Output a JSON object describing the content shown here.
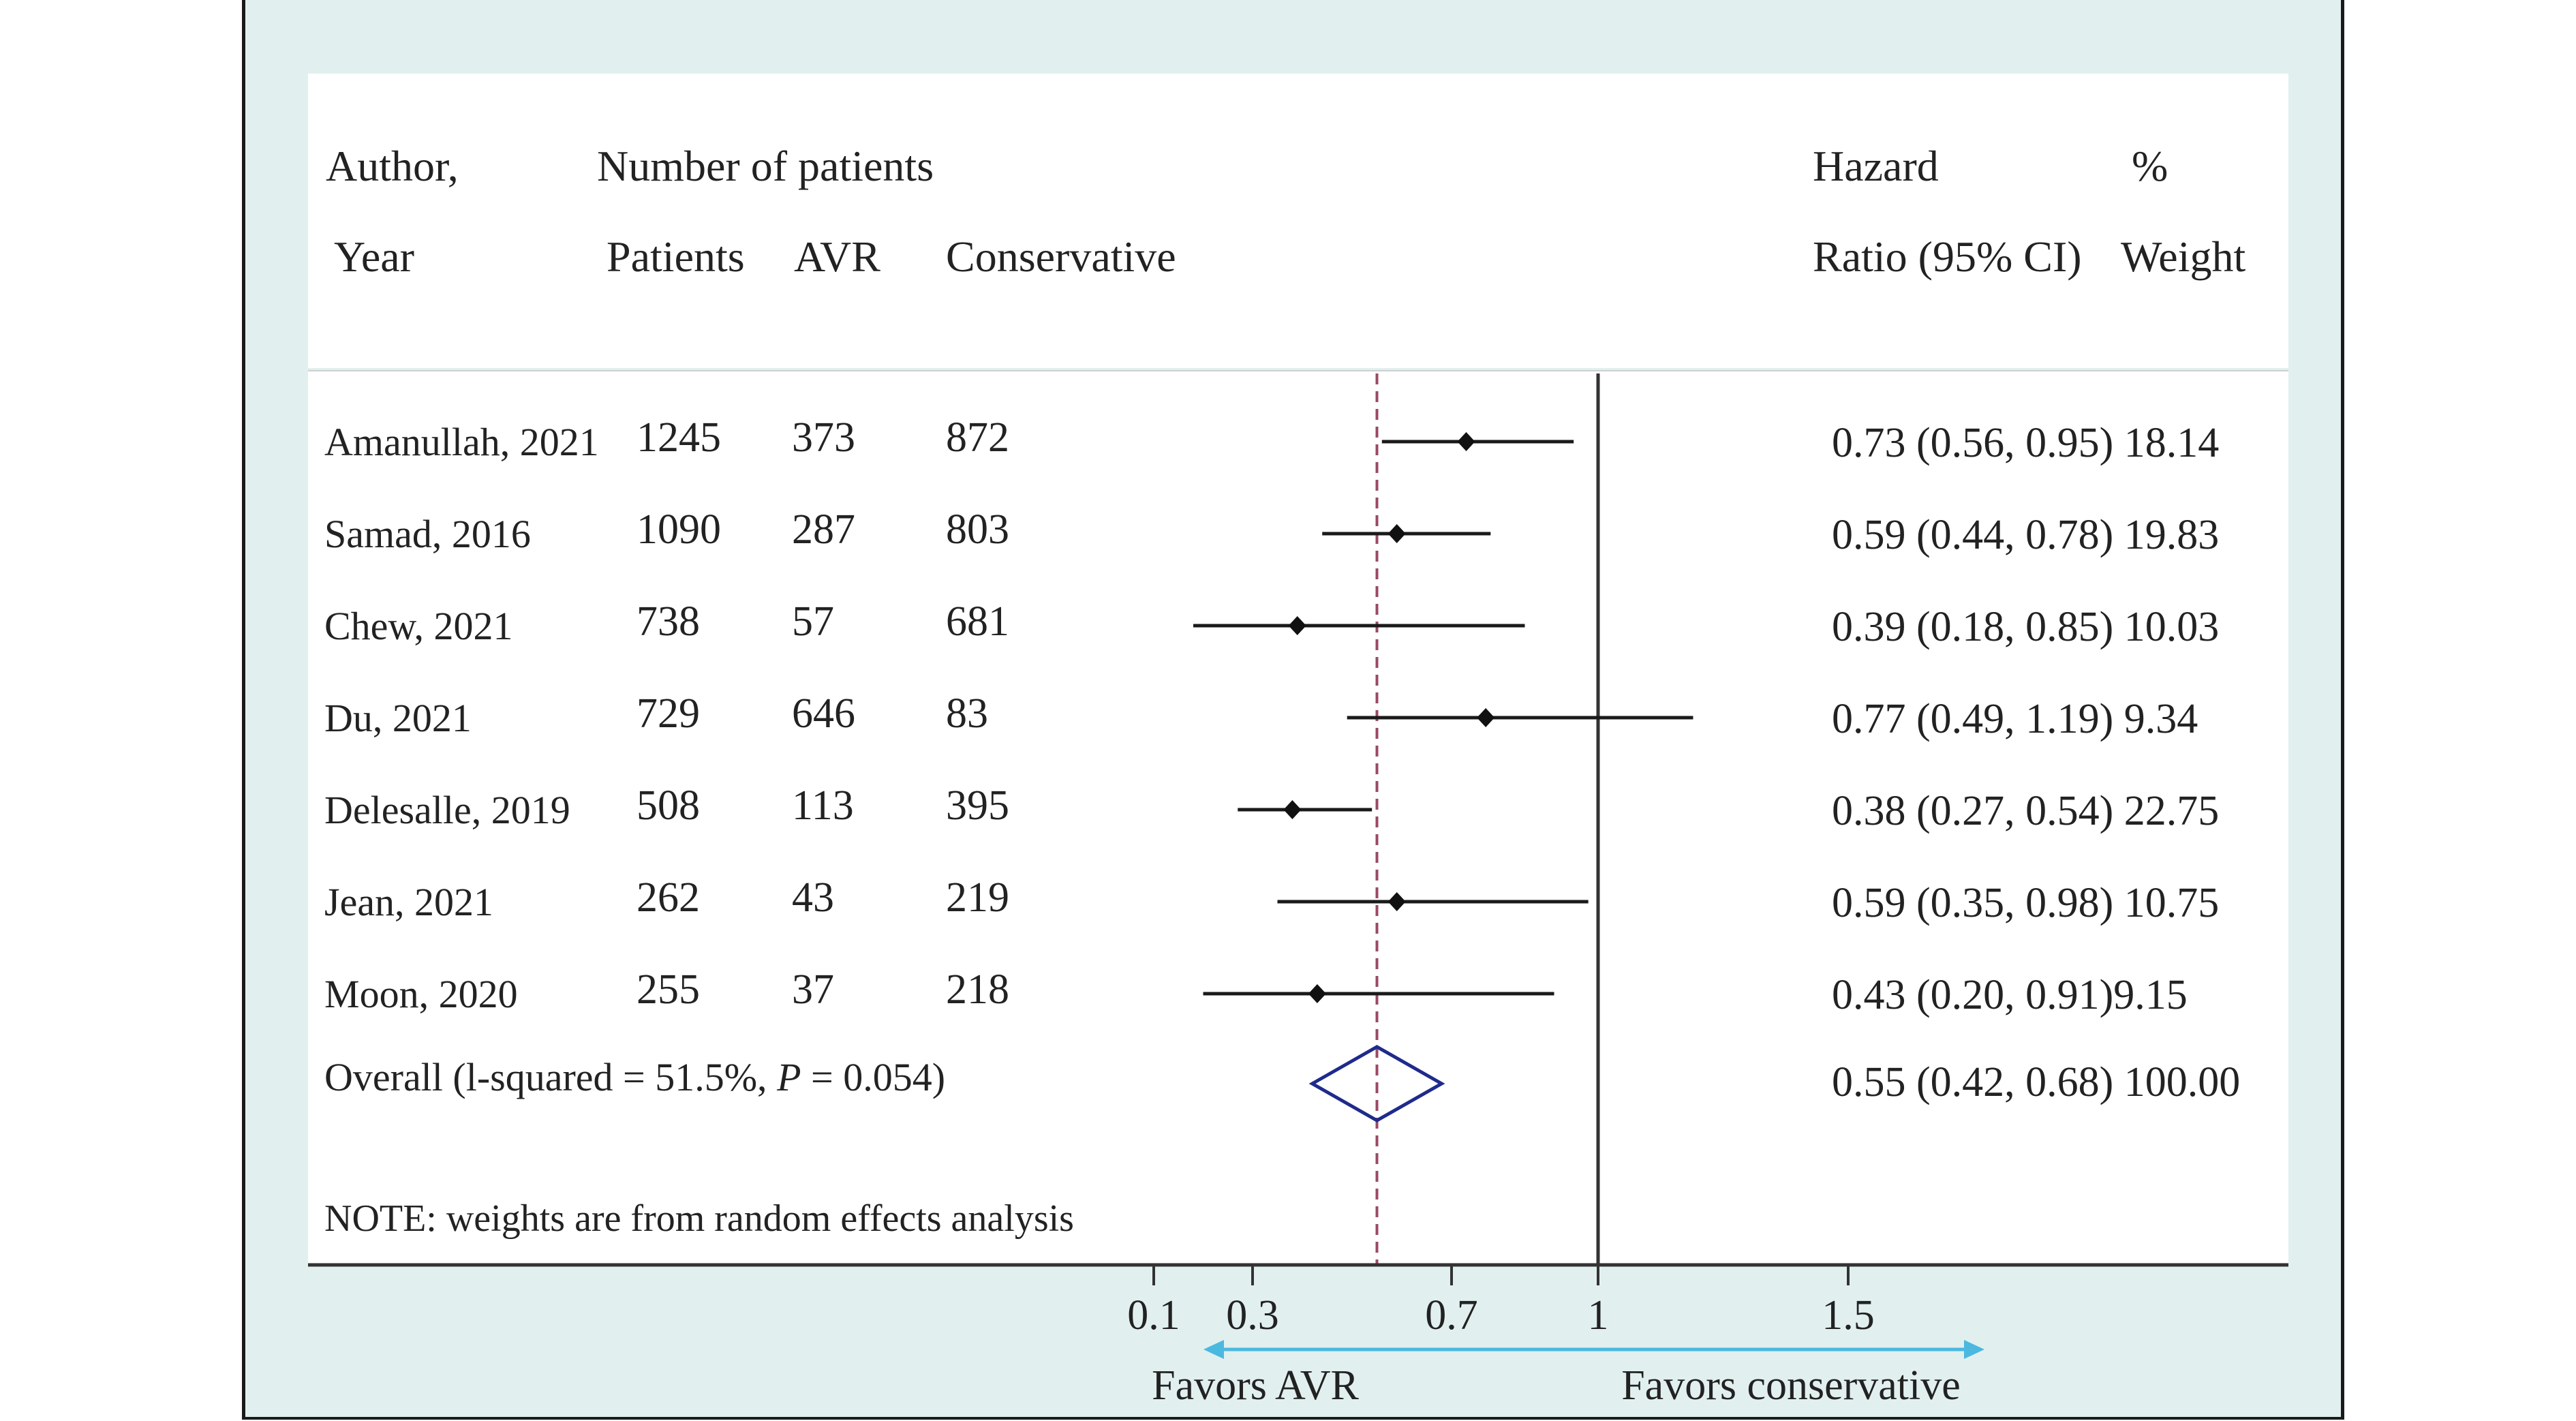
{
  "header": {
    "author_line1": "Author,",
    "author_line2": "Year",
    "number_of_patients": "Number of patients",
    "col_patients": "Patients",
    "col_avr": "AVR",
    "col_conservative": "Conservative",
    "hr_line1": "Hazard",
    "hr_line2": "Ratio (95% CI)",
    "weight_line1": "%",
    "weight_line2": "Weight"
  },
  "chart_data": {
    "type": "forest",
    "rows": [
      {
        "study": "Amanullah, 2021",
        "patients": "1245",
        "avr": "373",
        "conservative": "872",
        "hr": 0.73,
        "lo": 0.56,
        "hi": 0.95,
        "hr_text": "0.73 (0.56, 0.95) 18.14"
      },
      {
        "study": "Samad, 2016",
        "patients": "1090",
        "avr": "287",
        "conservative": "803",
        "hr": 0.59,
        "lo": 0.44,
        "hi": 0.78,
        "hr_text": "0.59 (0.44, 0.78) 19.83"
      },
      {
        "study": "Chew, 2021",
        "patients": "738",
        "avr": "57",
        "conservative": "681",
        "hr": 0.39,
        "lo": 0.18,
        "hi": 0.85,
        "hr_text": "0.39 (0.18, 0.85) 10.03"
      },
      {
        "study": "Du, 2021",
        "patients": "729",
        "avr": "646",
        "conservative": "83",
        "hr": 0.77,
        "lo": 0.49,
        "hi": 1.19,
        "hr_text": "0.77 (0.49, 1.19) 9.34"
      },
      {
        "study": "Delesalle, 2019",
        "patients": "508",
        "avr": "113",
        "conservative": "395",
        "hr": 0.38,
        "lo": 0.27,
        "hi": 0.54,
        "hr_text": "0.38 (0.27, 0.54) 22.75"
      },
      {
        "study": "Jean, 2021",
        "patients": "262",
        "avr": "43",
        "conservative": "219",
        "hr": 0.59,
        "lo": 0.35,
        "hi": 0.98,
        "hr_text": "0.59 (0.35, 0.98) 10.75"
      },
      {
        "study": "Moon, 2020",
        "patients": "255",
        "avr": "37",
        "conservative": "218",
        "hr": 0.43,
        "lo": 0.2,
        "hi": 0.91,
        "hr_text": "0.43 (0.20, 0.91)9.15"
      }
    ],
    "overall": {
      "label_prefix": "Overall (l-squared = 51.5%, ",
      "label_p": "P",
      "label_suffix": " = 0.054)",
      "hr": 0.55,
      "lo": 0.42,
      "hi": 0.68,
      "hr_text": "0.55 (0.42, 0.68) 100.00"
    },
    "null_value": 1,
    "ticks": [
      {
        "label": "0.1",
        "value": 0.1
      },
      {
        "label": "0.3",
        "value": 0.3
      },
      {
        "label": "0.7",
        "value": 0.7
      },
      {
        "label": "1",
        "value": 1
      },
      {
        "label": "1.5",
        "value": 1.5
      }
    ],
    "favors_left": "Favors AVR",
    "favors_right": "Favors conservative",
    "note": "NOTE: weights are from random effects analysis",
    "colors": {
      "ci_line": "#1a1a1a",
      "null_line": "#333333",
      "overall_line": "#9a4a62",
      "diamond": "#1f2a8c",
      "arrow": "#4bb8e0"
    }
  }
}
